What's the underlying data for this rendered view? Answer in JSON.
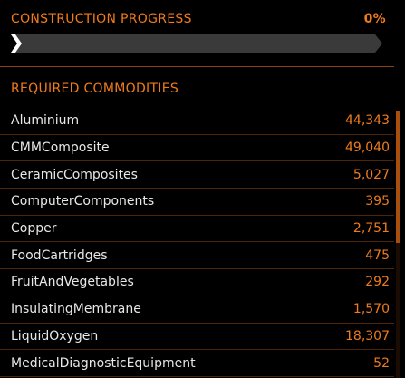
{
  "construction": {
    "title": "CONSTRUCTION PROGRESS",
    "percent_label": "0%",
    "progress": 0
  },
  "commodities": {
    "title": "REQUIRED COMMODITIES",
    "items": [
      {
        "name": "Aluminium",
        "qty": "44,343"
      },
      {
        "name": "CMMComposite",
        "qty": "49,040"
      },
      {
        "name": "CeramicComposites",
        "qty": "5,027"
      },
      {
        "name": "ComputerComponents",
        "qty": "395"
      },
      {
        "name": "Copper",
        "qty": "2,751"
      },
      {
        "name": "FoodCartridges",
        "qty": "475"
      },
      {
        "name": "FruitAndVegetables",
        "qty": "292"
      },
      {
        "name": "InsulatingMembrane",
        "qty": "1,570"
      },
      {
        "name": "LiquidOxygen",
        "qty": "18,307"
      },
      {
        "name": "MedicalDiagnosticEquipment",
        "qty": "52"
      }
    ]
  },
  "colors": {
    "accent": "#f07b1a",
    "text": "#e8e8e8",
    "background": "#000000",
    "track": "#3a3a3a"
  }
}
